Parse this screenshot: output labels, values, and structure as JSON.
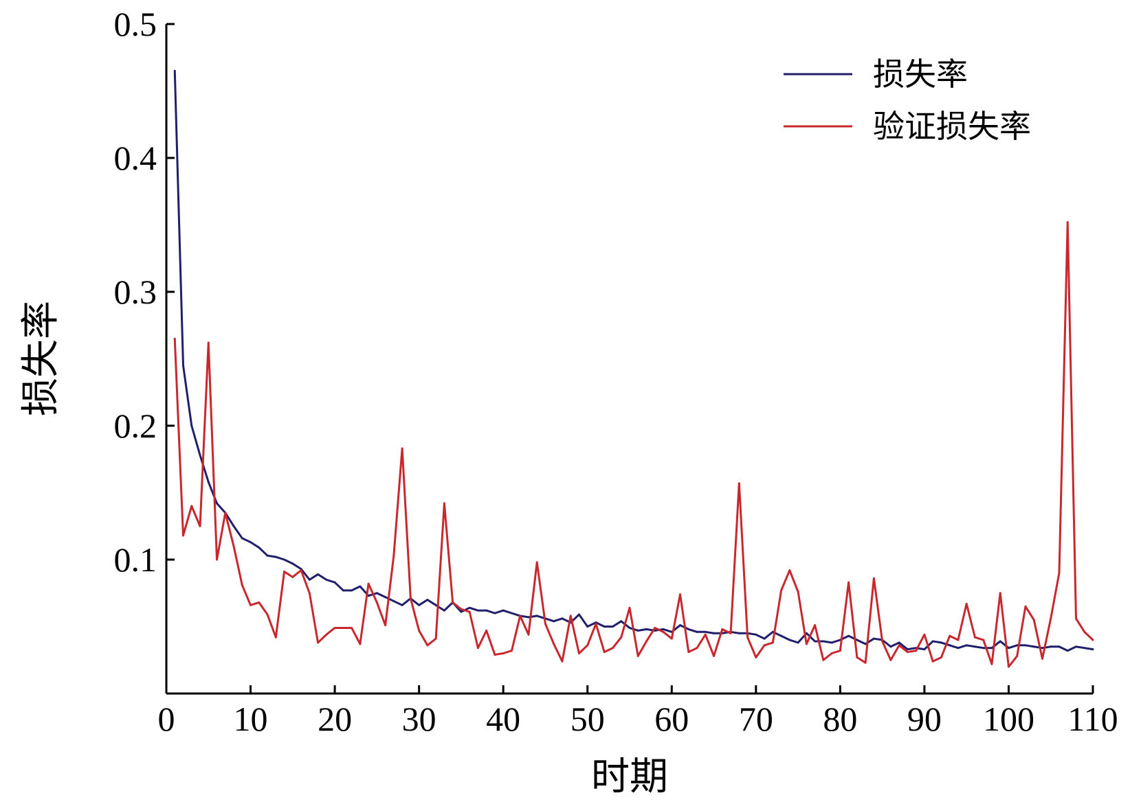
{
  "chart_data": {
    "type": "line",
    "title": "",
    "xlabel": "时期",
    "ylabel": "损失率",
    "xlim": [
      0,
      110
    ],
    "ylim": [
      0,
      0.5
    ],
    "xticks": [
      0,
      10,
      20,
      30,
      40,
      50,
      60,
      70,
      80,
      90,
      100,
      110
    ],
    "xtick_labels": [
      "0",
      "10",
      "20",
      "30",
      "40",
      "50",
      "60",
      "70",
      "80",
      "90",
      "100",
      "110"
    ],
    "yticks": [
      0.1,
      0.2,
      0.3,
      0.4,
      0.5
    ],
    "ytick_labels": [
      "0.1",
      "0.2",
      "0.3",
      "0.4",
      "0.5"
    ],
    "grid": false,
    "legend_position": "top-right",
    "x": [
      1,
      2,
      3,
      4,
      5,
      6,
      7,
      8,
      9,
      10,
      11,
      12,
      13,
      14,
      15,
      16,
      17,
      18,
      19,
      20,
      21,
      22,
      23,
      24,
      25,
      26,
      27,
      28,
      29,
      30,
      31,
      32,
      33,
      34,
      35,
      36,
      37,
      38,
      39,
      40,
      41,
      42,
      43,
      44,
      45,
      46,
      47,
      48,
      49,
      50,
      51,
      52,
      53,
      54,
      55,
      56,
      57,
      58,
      59,
      60,
      61,
      62,
      63,
      64,
      65,
      66,
      67,
      68,
      69,
      70,
      71,
      72,
      73,
      74,
      75,
      76,
      77,
      78,
      79,
      80,
      81,
      82,
      83,
      84,
      85,
      86,
      87,
      88,
      89,
      90,
      91,
      92,
      93,
      94,
      95,
      96,
      97,
      98,
      99,
      100,
      101,
      102,
      103,
      104,
      105,
      106,
      107,
      108,
      109,
      110
    ],
    "series": [
      {
        "name": "损失率",
        "color": "#1f1f6b",
        "values": [
          0.465,
          0.245,
          0.2,
          0.178,
          0.158,
          0.142,
          0.135,
          0.125,
          0.116,
          0.113,
          0.109,
          0.103,
          0.102,
          0.1,
          0.097,
          0.093,
          0.085,
          0.089,
          0.085,
          0.083,
          0.077,
          0.077,
          0.08,
          0.073,
          0.075,
          0.072,
          0.069,
          0.066,
          0.071,
          0.066,
          0.07,
          0.066,
          0.062,
          0.068,
          0.061,
          0.064,
          0.062,
          0.062,
          0.06,
          0.062,
          0.06,
          0.058,
          0.057,
          0.058,
          0.056,
          0.054,
          0.056,
          0.053,
          0.059,
          0.05,
          0.053,
          0.05,
          0.05,
          0.054,
          0.049,
          0.047,
          0.048,
          0.047,
          0.048,
          0.046,
          0.051,
          0.048,
          0.046,
          0.046,
          0.045,
          0.045,
          0.046,
          0.045,
          0.045,
          0.044,
          0.041,
          0.046,
          0.043,
          0.04,
          0.038,
          0.045,
          0.039,
          0.039,
          0.038,
          0.04,
          0.043,
          0.04,
          0.037,
          0.041,
          0.04,
          0.035,
          0.038,
          0.033,
          0.034,
          0.033,
          0.039,
          0.038,
          0.036,
          0.034,
          0.036,
          0.035,
          0.034,
          0.034,
          0.039,
          0.034,
          0.036,
          0.036,
          0.035,
          0.034,
          0.035,
          0.035,
          0.032,
          0.035,
          0.034,
          0.033
        ]
      },
      {
        "name": "验证损失率",
        "color": "#c8282d",
        "values": [
          0.265,
          0.118,
          0.14,
          0.125,
          0.262,
          0.1,
          0.135,
          0.11,
          0.081,
          0.066,
          0.068,
          0.059,
          0.042,
          0.091,
          0.087,
          0.092,
          0.075,
          0.038,
          0.044,
          0.049,
          0.049,
          0.049,
          0.037,
          0.082,
          0.068,
          0.051,
          0.103,
          0.183,
          0.071,
          0.047,
          0.036,
          0.041,
          0.142,
          0.068,
          0.063,
          0.061,
          0.034,
          0.047,
          0.029,
          0.03,
          0.032,
          0.058,
          0.044,
          0.098,
          0.052,
          0.037,
          0.024,
          0.058,
          0.03,
          0.036,
          0.052,
          0.031,
          0.034,
          0.042,
          0.064,
          0.028,
          0.039,
          0.049,
          0.046,
          0.041,
          0.074,
          0.031,
          0.034,
          0.044,
          0.028,
          0.048,
          0.045,
          0.157,
          0.042,
          0.027,
          0.036,
          0.038,
          0.077,
          0.092,
          0.076,
          0.037,
          0.051,
          0.025,
          0.03,
          0.032,
          0.083,
          0.027,
          0.023,
          0.086,
          0.039,
          0.025,
          0.036,
          0.031,
          0.032,
          0.044,
          0.024,
          0.027,
          0.043,
          0.04,
          0.067,
          0.042,
          0.04,
          0.022,
          0.075,
          0.02,
          0.028,
          0.065,
          0.055,
          0.026,
          0.056,
          0.09,
          0.352,
          0.056,
          0.046,
          0.04
        ]
      }
    ]
  }
}
